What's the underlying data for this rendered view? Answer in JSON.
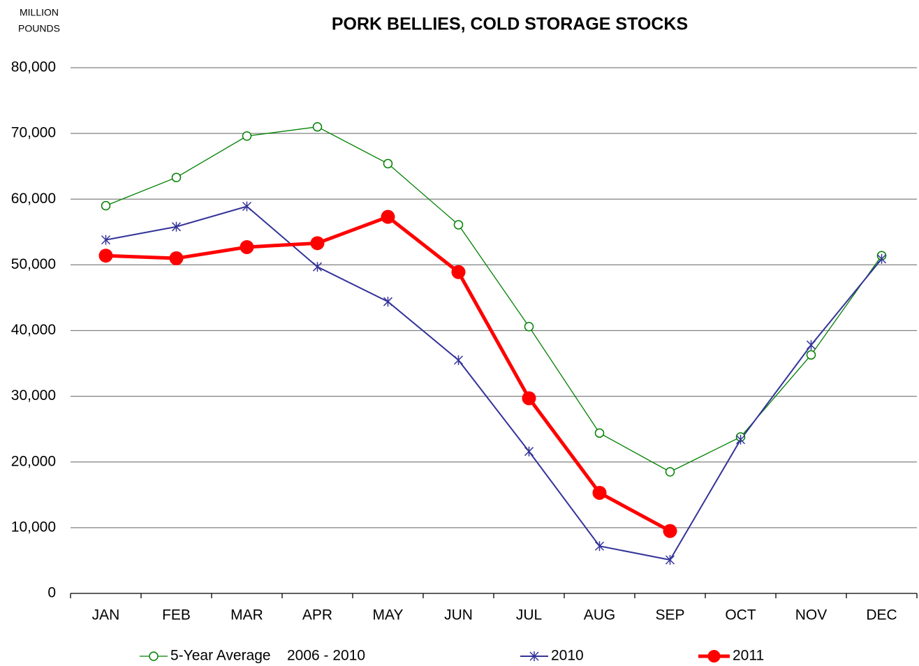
{
  "chart_data": {
    "type": "line",
    "title": "PORK BELLIES, COLD STORAGE STOCKS",
    "y_label": [
      "MILLION",
      "POUNDS"
    ],
    "categories": [
      "JAN",
      "FEB",
      "MAR",
      "APR",
      "MAY",
      "JUN",
      "JUL",
      "AUG",
      "SEP",
      "OCT",
      "NOV",
      "DEC"
    ],
    "series": [
      {
        "name": "5-Year Average    2006 - 2010",
        "color": "#008000",
        "marker": "open-circle",
        "values": [
          59000,
          63300,
          69600,
          71000,
          65400,
          56100,
          40600,
          24400,
          18500,
          23800,
          36300,
          51400
        ]
      },
      {
        "name": "2010",
        "color": "#333399",
        "marker": "asterisk",
        "values": [
          53800,
          55800,
          58900,
          49700,
          44400,
          35500,
          21600,
          7200,
          5100,
          23400,
          37800,
          50900
        ]
      },
      {
        "name": "2011",
        "color": "#ff0000",
        "marker": "filled-circle",
        "values": [
          51400,
          51000,
          52700,
          53300,
          57300,
          48900,
          29700,
          15300,
          9500,
          null,
          null,
          null
        ]
      }
    ],
    "ylim": [
      0,
      80000
    ],
    "yticks": [
      0,
      {
        "value": 10000,
        "label": "10,000"
      },
      {
        "value": 20000,
        "label": "20,000"
      },
      {
        "value": 30000,
        "label": "30,000"
      },
      {
        "value": 40000,
        "label": "40,000"
      },
      {
        "value": 50000,
        "label": "50,000"
      },
      {
        "value": 60000,
        "label": "60,000"
      },
      {
        "value": 70000,
        "label": "70,000"
      },
      {
        "value": 80000,
        "label": "80,000"
      }
    ],
    "grid": true,
    "legend": "bottom"
  }
}
